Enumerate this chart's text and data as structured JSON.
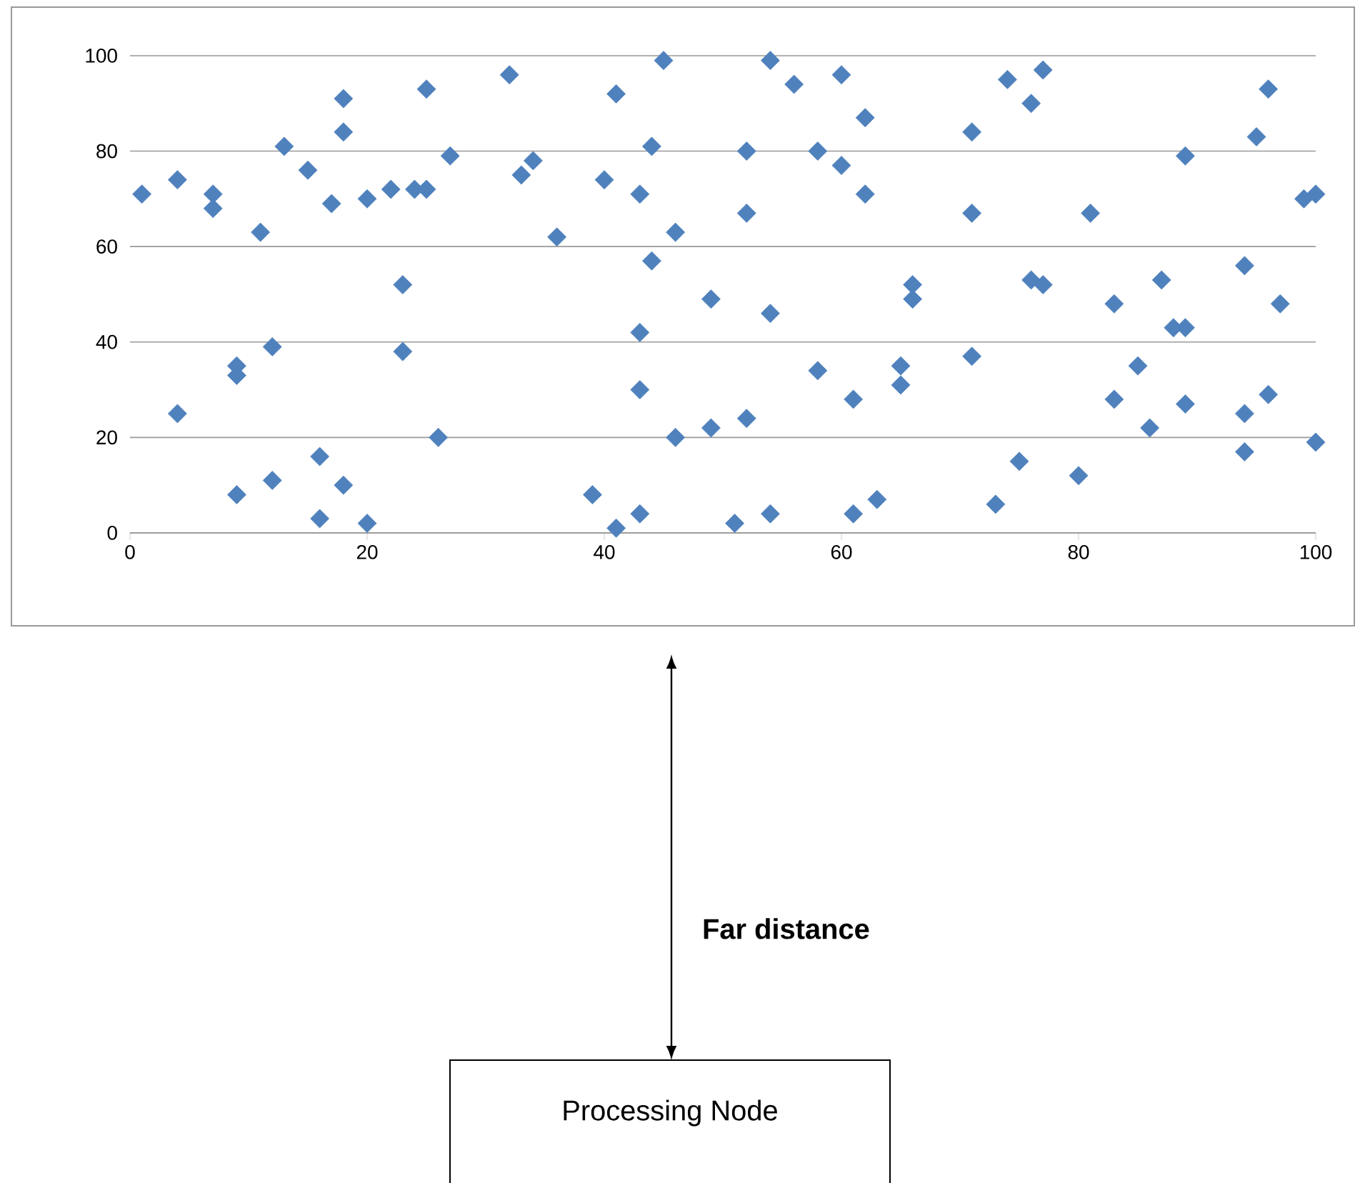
{
  "chart_data": {
    "type": "scatter",
    "x": [
      1,
      4,
      4,
      7,
      7,
      9,
      9,
      9,
      11,
      12,
      12,
      13,
      15,
      16,
      16,
      17,
      18,
      18,
      18,
      20,
      20,
      22,
      23,
      23,
      24,
      25,
      25,
      26,
      27,
      32,
      33,
      34,
      36,
      39,
      40,
      41,
      41,
      43,
      43,
      43,
      43,
      44,
      44,
      45,
      46,
      46,
      49,
      49,
      51,
      52,
      52,
      52,
      54,
      54,
      54,
      56,
      58,
      58,
      60,
      60,
      61,
      61,
      62,
      62,
      63,
      65,
      65,
      66,
      66,
      71,
      71,
      71,
      73,
      74,
      75,
      76,
      76,
      77,
      77,
      80,
      81,
      83,
      83,
      85,
      86,
      87,
      88,
      89,
      89,
      89,
      94,
      94,
      94,
      95,
      96,
      96,
      97,
      99,
      100,
      100
    ],
    "values": [
      71,
      74,
      25,
      71,
      68,
      35,
      33,
      8,
      63,
      39,
      11,
      81,
      76,
      16,
      3,
      69,
      91,
      84,
      10,
      70,
      2,
      72,
      52,
      38,
      72,
      93,
      72,
      20,
      79,
      96,
      75,
      78,
      62,
      8,
      74,
      92,
      1,
      71,
      42,
      30,
      4,
      81,
      57,
      99,
      63,
      20,
      49,
      22,
      2,
      80,
      67,
      24,
      99,
      46,
      4,
      94,
      80,
      34,
      96,
      77,
      28,
      4,
      87,
      71,
      7,
      35,
      31,
      52,
      49,
      84,
      67,
      37,
      6,
      95,
      15,
      90,
      53,
      97,
      52,
      12,
      67,
      48,
      28,
      35,
      22,
      53,
      43,
      79,
      43,
      27,
      56,
      25,
      17,
      83,
      93,
      29,
      48,
      70,
      71,
      19
    ],
    "color": "#4f81bd",
    "marker": "diamond",
    "grid": "y",
    "xlim": [
      0,
      100
    ],
    "ylim": [
      0,
      100
    ],
    "xticks": [
      0,
      20,
      40,
      60,
      80,
      100
    ],
    "yticks": [
      0,
      20,
      40,
      60,
      80,
      100
    ],
    "annotations": [
      "Far distance",
      "Processing Node"
    ]
  }
}
